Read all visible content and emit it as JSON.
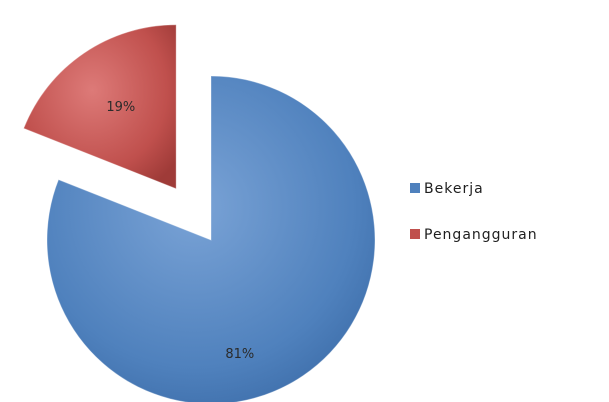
{
  "chart_data": {
    "type": "pie",
    "categories": [
      "Bekerja",
      "Pengangguran"
    ],
    "values": [
      81,
      19
    ],
    "data_labels": [
      "81%",
      "19%"
    ],
    "exploded": [
      "Pengangguran"
    ],
    "legend_placement": "right",
    "colors": {
      "Bekerja": "#4f81bd",
      "Pengangguran": "#c0504d"
    }
  }
}
